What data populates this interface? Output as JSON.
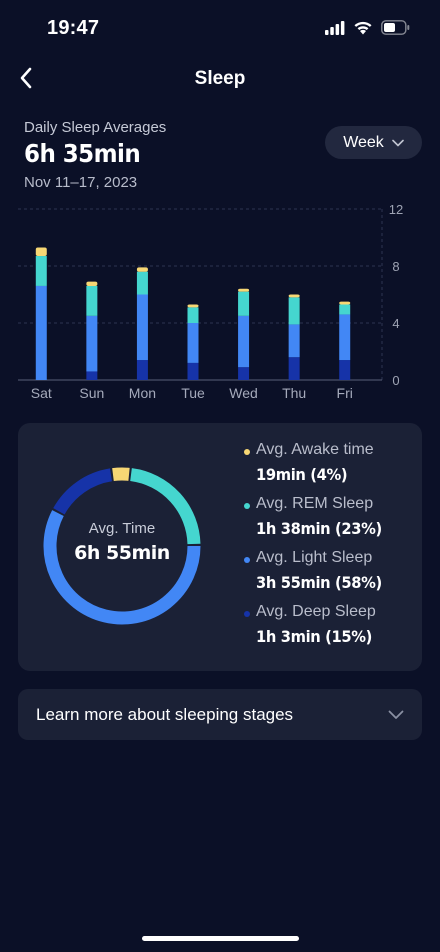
{
  "status_bar": {
    "time": "19:47"
  },
  "header": {
    "title": "Sleep"
  },
  "summary": {
    "label": "Daily Sleep Averages",
    "value": "6h 35min",
    "range": "Nov 11–17, 2023"
  },
  "period_select": {
    "selected": "Week"
  },
  "colors": {
    "awake": "#f7d774",
    "rem": "#45d6cf",
    "light": "#4287f5",
    "deep": "#1633a8",
    "background": "#0b1027",
    "card": "#1b2136"
  },
  "chart_data": {
    "type": "bar",
    "stacked": true,
    "categories": [
      "Sat",
      "Sun",
      "Mon",
      "Tue",
      "Wed",
      "Thu",
      "Fri"
    ],
    "y_ticks": [
      "0",
      "4",
      "8",
      "12"
    ],
    "ylim": [
      0,
      12
    ],
    "series": [
      {
        "key": "deep",
        "values": [
          0,
          0.6,
          1.4,
          1.2,
          0.9,
          1.6,
          1.4
        ]
      },
      {
        "key": "light",
        "values": [
          6.6,
          3.9,
          4.6,
          2.8,
          3.6,
          2.3,
          3.2
        ]
      },
      {
        "key": "rem",
        "values": [
          2.1,
          2.1,
          1.6,
          1.1,
          1.7,
          1.9,
          0.7
        ]
      },
      {
        "key": "awake",
        "values": [
          0.6,
          0.3,
          0.3,
          0.2,
          0.2,
          0.2,
          0.2
        ]
      }
    ]
  },
  "breakdown": {
    "avg_label": "Avg. Time",
    "avg_value": "6h 55min",
    "items": [
      {
        "key": "awake",
        "label": "Avg. Awake time",
        "value": "19min  (4%)",
        "percent": 4
      },
      {
        "key": "rem",
        "label": "Avg. REM Sleep",
        "value": "1h 38min  (23%)",
        "percent": 23
      },
      {
        "key": "light",
        "label": "Avg. Light Sleep",
        "value": "3h 55min  (58%)",
        "percent": 58
      },
      {
        "key": "deep",
        "label": "Avg. Deep Sleep",
        "value": "1h 3min  (15%)",
        "percent": 15
      }
    ]
  },
  "learn_more": {
    "label": "Learn more about sleeping stages"
  }
}
